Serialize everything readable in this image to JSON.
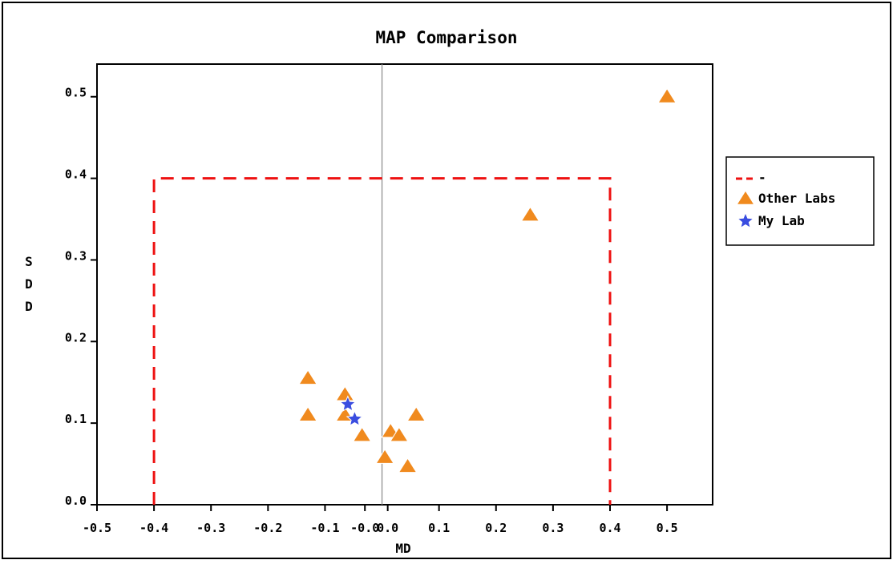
{
  "chart_data": {
    "type": "scatter",
    "title": "MAP Comparison",
    "xlabel": "MD",
    "ylabel": "SDD",
    "xlim": [
      -0.5,
      0.58
    ],
    "ylim": [
      0.0,
      0.54
    ],
    "x_ticks": [
      "-0.5",
      "-0.4",
      "-0.3",
      "-0.2",
      "-0.1",
      "-0.0",
      "0.0",
      "0.1",
      "0.2",
      "0.3",
      "0.4",
      "0.5"
    ],
    "x_tick_values": [
      -0.5,
      -0.4,
      -0.3,
      -0.2,
      -0.1,
      -0.03,
      0.01,
      0.1,
      0.2,
      0.3,
      0.4,
      0.5
    ],
    "y_ticks": [
      "0.0",
      "0.1",
      "0.2",
      "0.3",
      "0.4",
      "0.5"
    ],
    "y_tick_values": [
      0.0,
      0.1,
      0.2,
      0.3,
      0.4,
      0.5
    ],
    "grid": false,
    "legend_position": "right",
    "reference_line_x": 0.0,
    "series": [
      {
        "name": "-",
        "kind": "dashed-box",
        "color": "#ee1111",
        "x": [
          -0.4,
          -0.4,
          0.4,
          0.4
        ],
        "y": [
          0.0,
          0.4,
          0.4,
          0.0
        ]
      },
      {
        "name": "Other Labs",
        "kind": "triangle",
        "color": "#f08a1e",
        "points": [
          {
            "x": 0.5,
            "y": 0.5
          },
          {
            "x": 0.26,
            "y": 0.355
          },
          {
            "x": -0.13,
            "y": 0.155
          },
          {
            "x": -0.13,
            "y": 0.11
          },
          {
            "x": -0.065,
            "y": 0.135
          },
          {
            "x": -0.065,
            "y": 0.11
          },
          {
            "x": -0.035,
            "y": 0.085
          },
          {
            "x": 0.015,
            "y": 0.09
          },
          {
            "x": 0.03,
            "y": 0.085
          },
          {
            "x": 0.06,
            "y": 0.11
          },
          {
            "x": 0.005,
            "y": 0.058
          },
          {
            "x": 0.045,
            "y": 0.047
          }
        ]
      },
      {
        "name": "My Lab",
        "kind": "star",
        "color": "#3a4de0",
        "points": [
          {
            "x": -0.06,
            "y": 0.123
          },
          {
            "x": -0.048,
            "y": 0.105
          }
        ]
      }
    ]
  }
}
